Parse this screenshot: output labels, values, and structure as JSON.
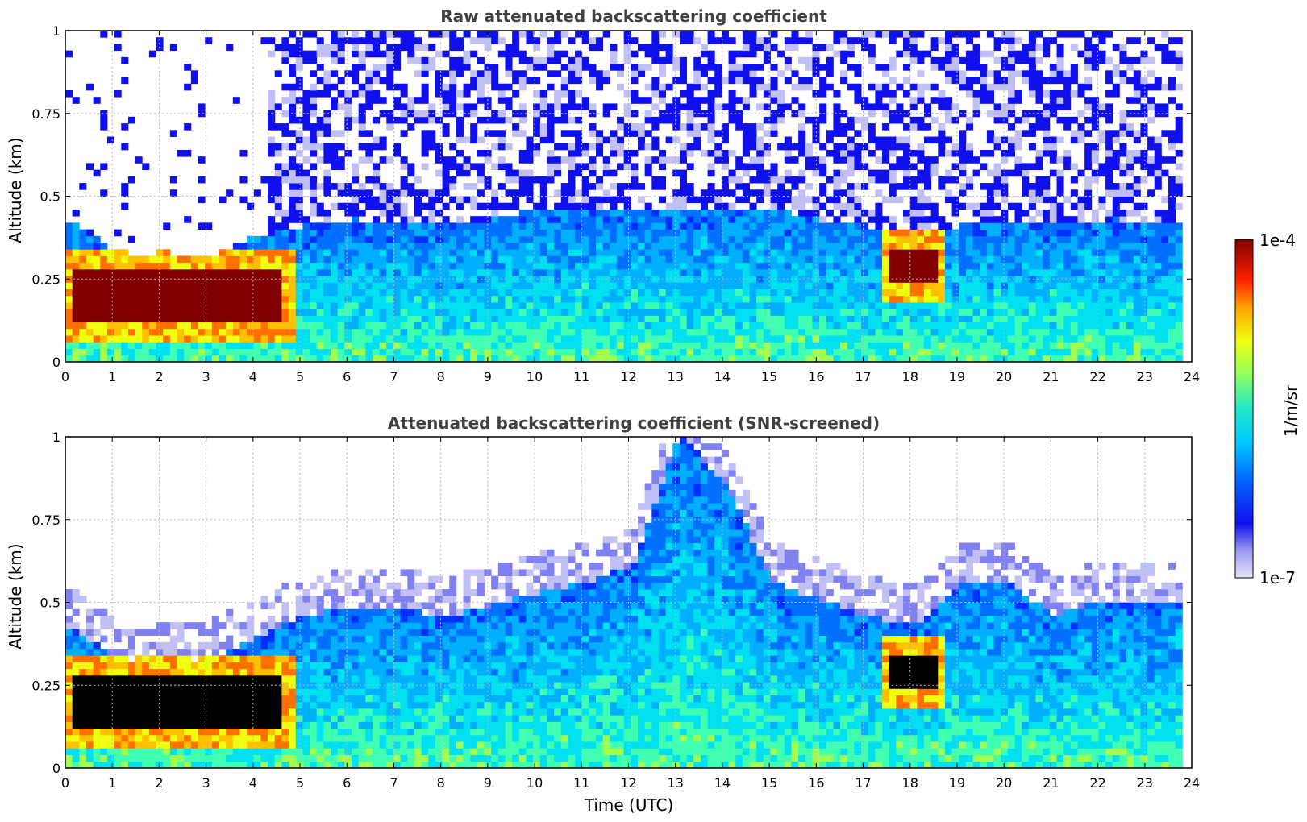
{
  "chart_data": [
    {
      "type": "heatmap",
      "title": "Raw attenuated backscattering coefficient",
      "xlabel": "",
      "ylabel": "Altitude (km)",
      "xlim": [
        0,
        24
      ],
      "ylim": [
        0,
        1
      ],
      "x_ticks": [
        "0",
        "1",
        "2",
        "3",
        "4",
        "5",
        "6",
        "7",
        "8",
        "9",
        "10",
        "11",
        "12",
        "13",
        "14",
        "15",
        "16",
        "17",
        "18",
        "19",
        "20",
        "21",
        "22",
        "23",
        "24"
      ],
      "y_ticks": [
        "0",
        "0.25",
        "0.5",
        "0.75",
        "1"
      ],
      "grid": true,
      "features": {
        "boundary_layer_top_km": [
          0.42,
          0.33,
          0.3,
          0.31,
          0.37,
          0.4,
          0.42,
          0.42,
          0.4,
          0.42,
          0.45,
          0.45,
          0.45,
          0.45,
          0.45,
          0.45,
          0.42,
          0.4,
          0.38,
          0.4,
          0.42,
          0.42,
          0.42,
          0.42,
          0.42
        ],
        "strong_layer": [
          {
            "x_start": 0.1,
            "x_end": 4.6,
            "altitude_km": [
              0.12,
              0.27
            ]
          },
          {
            "x_start": 17.5,
            "x_end": 18.5,
            "altitude_km": [
              0.23,
              0.32
            ]
          }
        ]
      }
    },
    {
      "type": "heatmap",
      "title": "Attenuated backscattering coefficient (SNR-screened)",
      "xlabel": "Time (UTC)",
      "ylabel": "Altitude (km)",
      "xlim": [
        0,
        24
      ],
      "ylim": [
        0,
        1
      ],
      "x_ticks": [
        "0",
        "1",
        "2",
        "3",
        "4",
        "5",
        "6",
        "7",
        "8",
        "9",
        "10",
        "11",
        "12",
        "13",
        "14",
        "15",
        "16",
        "17",
        "18",
        "19",
        "20",
        "21",
        "22",
        "23",
        "24"
      ],
      "y_ticks": [
        "0",
        "0.25",
        "0.5",
        "0.75",
        "1"
      ],
      "grid": true,
      "features": {
        "signal_top_km": [
          0.42,
          0.33,
          0.3,
          0.32,
          0.38,
          0.45,
          0.47,
          0.47,
          0.45,
          0.48,
          0.52,
          0.55,
          0.6,
          1.0,
          0.85,
          0.55,
          0.5,
          0.45,
          0.42,
          0.55,
          0.55,
          0.45,
          0.5,
          0.5,
          0.5
        ],
        "strong_layer": [
          {
            "x_start": 0.1,
            "x_end": 4.6,
            "altitude_km": [
              0.12,
              0.27
            ]
          },
          {
            "x_start": 17.5,
            "x_end": 18.5,
            "altitude_km": [
              0.23,
              0.32
            ]
          }
        ]
      }
    }
  ],
  "colorbar": {
    "label": "1/m/sr",
    "max_label": "1e-4",
    "min_label": "1e-7",
    "colormap": "jet",
    "scale": "log"
  }
}
